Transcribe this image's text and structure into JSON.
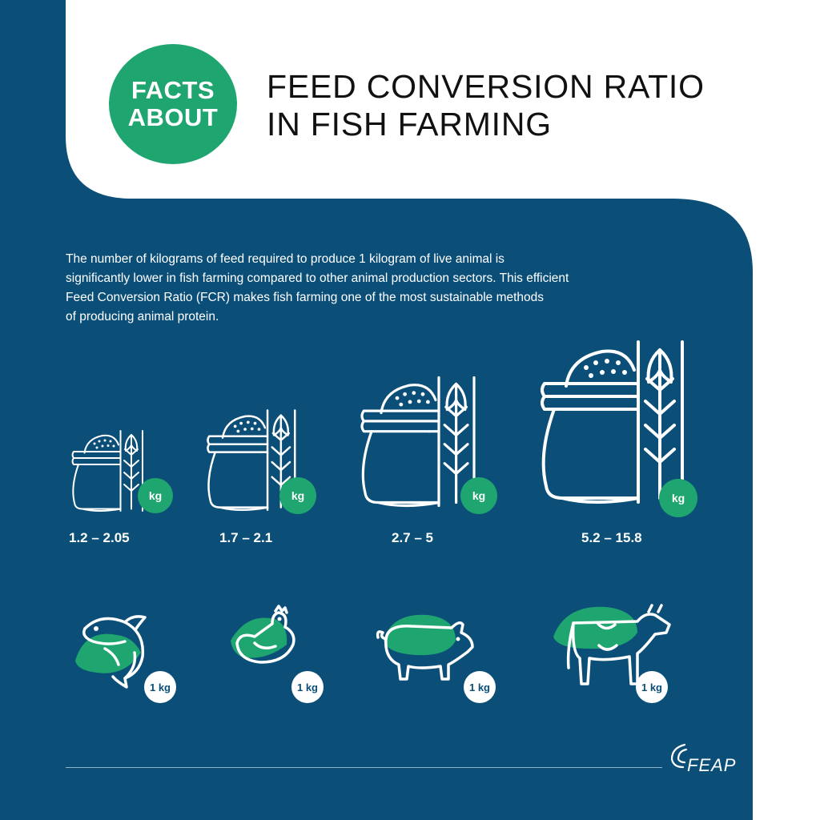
{
  "header": {
    "badge_line1": "FACTS",
    "badge_line2": "ABOUT",
    "title_line1": "FEED CONVERSION RATIO",
    "title_line2": "IN FISH FARMING"
  },
  "intro": {
    "line1": "The number of kilograms of feed required to produce 1 kilogram of live animal is",
    "line2": "significantly lower in fish farming compared to other animal production sectors. This efficient",
    "line3": "Feed Conversion Ratio (FCR) makes fish farming one of the most sustainable methods",
    "line4": "of producing animal protein."
  },
  "feed": [
    {
      "ratio": "1.2 – 2.05",
      "unit": "kg"
    },
    {
      "ratio": "1.7 – 2.1",
      "unit": "kg"
    },
    {
      "ratio": "2.7 – 5",
      "unit": "kg"
    },
    {
      "ratio": "5.2 – 15.8",
      "unit": "kg"
    }
  ],
  "animals": [
    {
      "icon": "fish-icon",
      "output": "1 kg"
    },
    {
      "icon": "chicken-icon",
      "output": "1 kg"
    },
    {
      "icon": "pig-icon",
      "output": "1 kg"
    },
    {
      "icon": "cow-icon",
      "output": "1 kg"
    }
  ],
  "footer": {
    "logo": "FEAP"
  },
  "colors": {
    "navy": "#0b4f78",
    "green": "#1fa56f",
    "white": "#ffffff"
  }
}
